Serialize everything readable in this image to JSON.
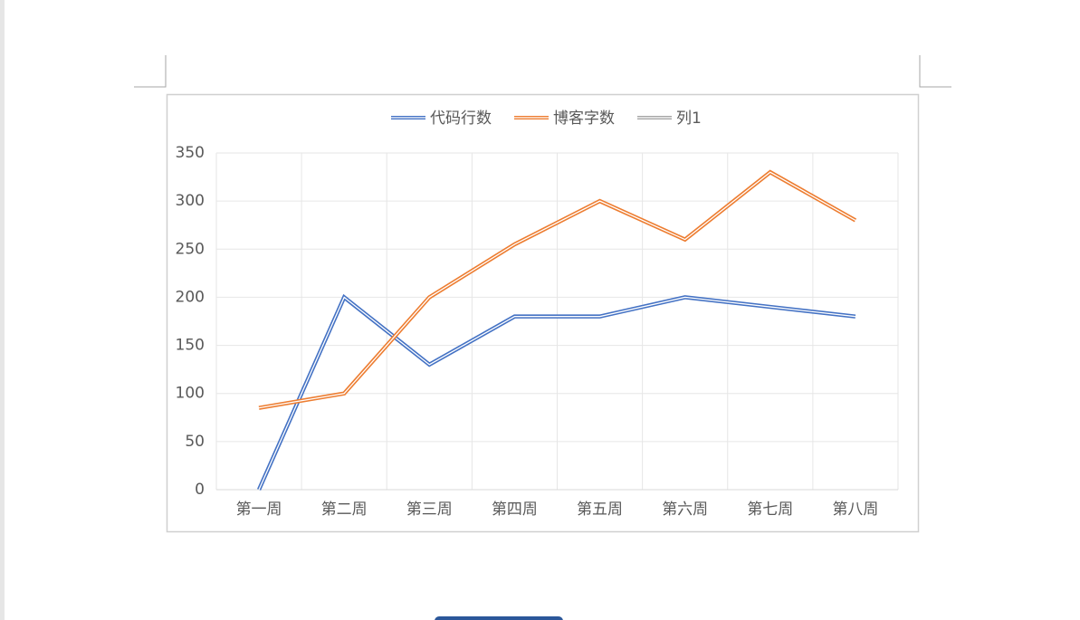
{
  "chart_data": {
    "type": "line",
    "categories": [
      "第一周",
      "第二周",
      "第三周",
      "第四周",
      "第五周",
      "第六周",
      "第七周",
      "第八周"
    ],
    "series": [
      {
        "name": "代码行数",
        "color": "#4472c4",
        "values": [
          0,
          200,
          130,
          180,
          180,
          200,
          190,
          180
        ]
      },
      {
        "name": "博客字数",
        "color": "#ed7d31",
        "values": [
          85,
          100,
          200,
          255,
          300,
          260,
          330,
          280
        ]
      },
      {
        "name": "列1",
        "color": "#a5a5a5",
        "values": [
          null,
          null,
          null,
          null,
          null,
          null,
          null,
          null
        ]
      }
    ],
    "ylim": [
      0,
      350
    ],
    "yticks": [
      0,
      50,
      100,
      150,
      200,
      250,
      300,
      350
    ],
    "grid": true,
    "legend": "top"
  }
}
